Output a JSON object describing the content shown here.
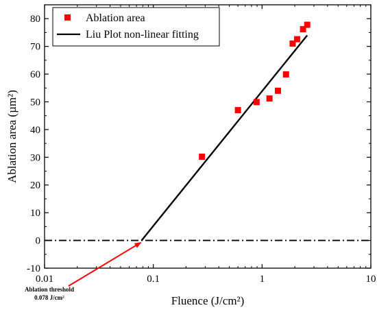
{
  "chart_data": {
    "type": "scatter",
    "xlabel": "Fluence (J/cm²)",
    "ylabel": "Ablation area (µm²)",
    "xscale": "log",
    "xlim": [
      0.01,
      10
    ],
    "ylim": [
      -10,
      85
    ],
    "x_ticks": [
      0.01,
      0.1,
      1,
      10
    ],
    "x_tick_labels": [
      "0.01",
      "0.1",
      "1",
      "10"
    ],
    "y_ticks": [
      -10,
      0,
      10,
      20,
      30,
      40,
      50,
      60,
      70,
      80
    ],
    "y_tick_labels": [
      "-10",
      "0",
      "10",
      "20",
      "30",
      "40",
      "50",
      "60",
      "70",
      "80"
    ],
    "legend_position": "top-left",
    "series": [
      {
        "name": "Ablation area",
        "kind": "marker",
        "marker": "square",
        "color": "#ff0000",
        "x": [
          0.28,
          0.6,
          0.89,
          1.17,
          1.4,
          1.66,
          1.91,
          2.1,
          2.38,
          2.6
        ],
        "y": [
          30.2,
          47.0,
          49.9,
          51.2,
          54.0,
          59.9,
          71.0,
          72.6,
          76.2,
          77.8
        ]
      },
      {
        "name": "Liu Plot non-linear fitting",
        "kind": "line",
        "color": "#000000",
        "x": [
          0.078,
          2.6
        ],
        "y": [
          0,
          74
        ]
      }
    ],
    "reference_line": {
      "y": 0,
      "style": "dash-dot",
      "color": "#000000"
    },
    "annotation": {
      "lines": [
        "Ablation threshold",
        "0.078 J/cm²"
      ],
      "arrow_to": {
        "x": 0.078,
        "y": 0
      },
      "color": "#ff0000"
    }
  }
}
